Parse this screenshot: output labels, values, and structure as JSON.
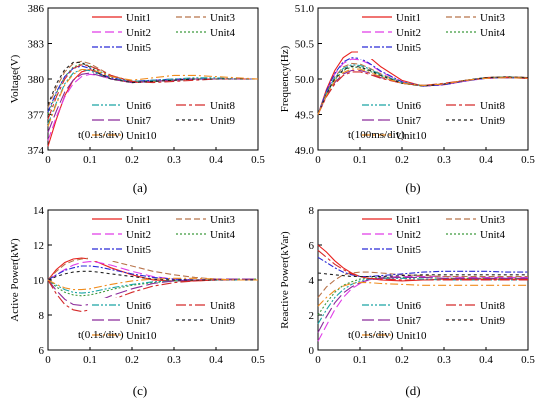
{
  "colors": {
    "Unit1": "#e8211e",
    "Unit2": "#e03ce8",
    "Unit3": "#b8734a",
    "Unit4": "#3e9a3e",
    "Unit5": "#2b2bd6",
    "Unit6": "#1aa3a3",
    "Unit7": "#8b2a9a",
    "Unit8": "#d42a2a",
    "Unit9": "#222222",
    "Unit10": "#f08c1e"
  },
  "dashes": {
    "Unit1": "",
    "Unit2": "9,4",
    "Unit3": "6,3",
    "Unit4": "2,2",
    "Unit5": "6,2,2,2",
    "Unit6": "7,2,2,2,2,2",
    "Unit7": "12,4",
    "Unit8": "10,3,3,3",
    "Unit9": "3,3",
    "Unit10": "8,3,2,3"
  },
  "chart_data": [
    {
      "type": "line",
      "panel_label": "(a)",
      "xlabel": "",
      "ylabel": "Voltage(V)",
      "annotation": "t(0.1s/div)",
      "xlim": [
        0,
        0.5
      ],
      "ylim": [
        374,
        386
      ],
      "xticks": [
        "0",
        "0.1",
        "0.2",
        "0.3",
        "0.4",
        "0.5"
      ],
      "yticks": [
        "374",
        "377",
        "380",
        "383",
        "386"
      ],
      "legend_top": [
        "Unit1",
        "Unit3",
        "Unit2",
        "Unit4",
        "Unit5"
      ],
      "legend_bottom": [
        "Unit6",
        "Unit8",
        "Unit7",
        "Unit9",
        "Unit10"
      ],
      "x": [
        0,
        0.02,
        0.04,
        0.06,
        0.08,
        0.1,
        0.12,
        0.15,
        0.2,
        0.25,
        0.3,
        0.35,
        0.4,
        0.45,
        0.5
      ],
      "series": [
        {
          "name": "Unit1",
          "values": [
            374.3,
            376.6,
            378.6,
            379.9,
            380.6,
            380.8,
            380.5,
            380.0,
            379.7,
            379.8,
            379.9,
            380.0,
            380.0,
            380.0,
            380.0
          ]
        },
        {
          "name": "Unit2",
          "values": [
            374.8,
            376.8,
            378.5,
            379.6,
            380.2,
            380.4,
            380.3,
            380.0,
            379.8,
            379.9,
            380.0,
            380.0,
            380.0,
            380.0,
            380.0
          ]
        },
        {
          "name": "Unit3",
          "values": [
            377.6,
            379.3,
            380.6,
            381.3,
            381.5,
            381.3,
            380.9,
            380.3,
            379.8,
            379.8,
            379.9,
            380.0,
            380.0,
            380.0,
            380.0
          ]
        },
        {
          "name": "Unit4",
          "values": [
            377.0,
            378.8,
            380.2,
            381.0,
            381.3,
            381.1,
            380.7,
            380.2,
            379.8,
            379.8,
            379.9,
            380.0,
            380.0,
            380.0,
            380.0
          ]
        },
        {
          "name": "Unit5",
          "values": [
            377.2,
            378.9,
            380.2,
            380.9,
            381.1,
            380.9,
            380.5,
            380.1,
            379.8,
            379.9,
            380.0,
            380.0,
            380.0,
            380.0,
            380.0
          ]
        },
        {
          "name": "Unit6",
          "values": [
            376.2,
            378.0,
            379.6,
            380.5,
            380.8,
            380.7,
            380.4,
            380.0,
            379.8,
            379.9,
            380.0,
            380.1,
            380.1,
            380.0,
            380.0
          ]
        },
        {
          "name": "Unit7",
          "values": [
            375.5,
            377.3,
            378.9,
            379.9,
            380.4,
            380.5,
            380.3,
            380.0,
            379.7,
            379.8,
            379.9,
            380.0,
            380.0,
            380.0,
            380.0
          ]
        },
        {
          "name": "Unit8",
          "values": [
            376.6,
            378.5,
            380.0,
            380.9,
            381.2,
            381.1,
            380.8,
            380.3,
            379.8,
            379.7,
            379.8,
            379.9,
            380.0,
            380.0,
            380.0
          ]
        },
        {
          "name": "Unit9",
          "values": [
            377.8,
            379.6,
            380.8,
            381.4,
            381.4,
            381.0,
            380.5,
            380.0,
            379.7,
            379.8,
            379.9,
            380.0,
            380.0,
            380.0,
            380.0
          ]
        },
        {
          "name": "Unit10",
          "values": [
            376.0,
            377.9,
            379.5,
            380.4,
            380.8,
            380.8,
            380.6,
            380.2,
            379.9,
            380.1,
            380.3,
            380.3,
            380.2,
            380.1,
            380.0
          ]
        }
      ]
    },
    {
      "type": "line",
      "panel_label": "(b)",
      "xlabel": "",
      "ylabel": "Frequency(Hz)",
      "annotation": "t(100ms/div)",
      "xlim": [
        0,
        0.5
      ],
      "ylim": [
        49,
        51
      ],
      "xticks": [
        "0",
        "0.1",
        "0.2",
        "0.3",
        "0.4",
        "0.5"
      ],
      "yticks": [
        "49.0",
        "49.5",
        "50.0",
        "50.5",
        "51.0"
      ],
      "legend_top": [
        "Unit1",
        "Unit3",
        "Unit2",
        "Unit4",
        "Unit5"
      ],
      "legend_bottom": [
        "Unit6",
        "Unit8",
        "Unit7",
        "Unit9",
        "Unit10"
      ],
      "x": [
        0,
        0.02,
        0.04,
        0.06,
        0.08,
        0.1,
        0.12,
        0.15,
        0.2,
        0.25,
        0.3,
        0.35,
        0.4,
        0.45,
        0.5
      ],
      "series": [
        {
          "name": "Unit1",
          "values": [
            49.5,
            49.85,
            50.12,
            50.3,
            50.38,
            50.38,
            50.32,
            50.17,
            49.98,
            49.9,
            49.92,
            49.97,
            50.02,
            50.03,
            50.02
          ]
        },
        {
          "name": "Unit2",
          "values": [
            49.5,
            49.82,
            50.07,
            50.22,
            50.28,
            50.27,
            50.22,
            50.1,
            49.96,
            49.9,
            49.92,
            49.97,
            50.01,
            50.02,
            50.01
          ]
        },
        {
          "name": "Unit3",
          "values": [
            49.5,
            49.8,
            50.03,
            50.17,
            50.22,
            50.21,
            50.16,
            50.07,
            49.95,
            49.9,
            49.93,
            49.98,
            50.02,
            50.03,
            50.02
          ]
        },
        {
          "name": "Unit4",
          "values": [
            49.5,
            49.78,
            49.99,
            50.12,
            50.17,
            50.16,
            50.12,
            50.04,
            49.94,
            49.9,
            49.93,
            49.98,
            50.02,
            50.03,
            50.02
          ]
        },
        {
          "name": "Unit5",
          "values": [
            49.5,
            49.83,
            50.08,
            50.24,
            50.3,
            50.29,
            50.23,
            50.11,
            49.96,
            49.9,
            49.92,
            49.97,
            50.01,
            50.02,
            50.01
          ]
        },
        {
          "name": "Unit6",
          "values": [
            49.5,
            49.8,
            50.02,
            50.15,
            50.2,
            50.19,
            50.15,
            50.06,
            49.95,
            49.91,
            49.93,
            49.98,
            50.02,
            50.02,
            50.01
          ]
        },
        {
          "name": "Unit7",
          "values": [
            49.5,
            49.76,
            49.95,
            50.07,
            50.12,
            50.12,
            50.09,
            50.02,
            49.94,
            49.91,
            49.93,
            49.98,
            50.01,
            50.02,
            50.01
          ]
        },
        {
          "name": "Unit8",
          "values": [
            49.5,
            49.75,
            49.93,
            50.05,
            50.1,
            50.1,
            50.07,
            50.01,
            49.94,
            49.91,
            49.94,
            49.98,
            50.02,
            50.02,
            50.01
          ]
        },
        {
          "name": "Unit9",
          "values": [
            49.5,
            49.79,
            50.0,
            50.13,
            50.18,
            50.17,
            50.13,
            50.05,
            49.94,
            49.9,
            49.93,
            49.98,
            50.02,
            50.03,
            50.02
          ]
        },
        {
          "name": "Unit10",
          "values": [
            49.5,
            49.77,
            49.97,
            50.09,
            50.14,
            50.14,
            50.1,
            50.03,
            49.94,
            49.91,
            49.93,
            49.98,
            50.01,
            50.02,
            50.01
          ]
        }
      ]
    },
    {
      "type": "line",
      "panel_label": "(c)",
      "xlabel": "",
      "ylabel": "Active Power(kW)",
      "annotation": "t(0.1s/div)",
      "xlim": [
        0,
        0.5
      ],
      "ylim": [
        6,
        14
      ],
      "xticks": [
        "0",
        "0.1",
        "0.2",
        "0.3",
        "0.4",
        "0.5"
      ],
      "yticks": [
        "6",
        "8",
        "10",
        "12",
        "14"
      ],
      "legend_top": [
        "Unit1",
        "Unit3",
        "Unit2",
        "Unit4",
        "Unit5"
      ],
      "legend_bottom": [
        "Unit6",
        "Unit8",
        "Unit7",
        "Unit9",
        "Unit10"
      ],
      "x": [
        0,
        0.02,
        0.04,
        0.06,
        0.08,
        0.1,
        0.12,
        0.15,
        0.2,
        0.25,
        0.3,
        0.35,
        0.4,
        0.45,
        0.5
      ],
      "series": [
        {
          "name": "Unit1",
          "values": [
            10.0,
            10.6,
            11.0,
            11.2,
            11.25,
            11.2,
            11.0,
            10.7,
            10.3,
            10.0,
            9.95,
            9.95,
            10.0,
            10.0,
            10.0
          ]
        },
        {
          "name": "Unit2",
          "values": [
            10.0,
            10.3,
            10.6,
            10.85,
            11.0,
            11.05,
            11.0,
            10.85,
            10.5,
            10.2,
            10.05,
            10.0,
            10.0,
            10.0,
            10.0
          ]
        },
        {
          "name": "Unit3",
          "values": [
            10.0,
            10.5,
            10.9,
            11.1,
            11.2,
            11.25,
            11.2,
            11.1,
            10.8,
            10.5,
            10.3,
            10.15,
            10.05,
            10.0,
            10.0
          ]
        },
        {
          "name": "Unit4",
          "values": [
            10.0,
            9.6,
            9.3,
            9.15,
            9.1,
            9.15,
            9.25,
            9.45,
            9.7,
            9.85,
            9.95,
            10.0,
            10.0,
            10.05,
            10.05
          ]
        },
        {
          "name": "Unit5",
          "values": [
            10.0,
            10.3,
            10.55,
            10.7,
            10.8,
            10.8,
            10.75,
            10.6,
            10.35,
            10.15,
            10.05,
            10.0,
            10.0,
            10.0,
            10.0
          ]
        },
        {
          "name": "Unit6",
          "values": [
            10.0,
            9.7,
            9.45,
            9.3,
            9.25,
            9.3,
            9.4,
            9.55,
            9.75,
            9.9,
            9.95,
            10.0,
            10.0,
            10.0,
            10.0
          ]
        },
        {
          "name": "Unit7",
          "values": [
            10.0,
            9.4,
            8.9,
            8.6,
            8.55,
            8.6,
            8.8,
            9.1,
            9.5,
            9.8,
            9.95,
            10.0,
            10.05,
            10.05,
            10.05
          ]
        },
        {
          "name": "Unit8",
          "values": [
            10.0,
            9.2,
            8.6,
            8.3,
            8.2,
            8.3,
            8.5,
            8.85,
            9.3,
            9.65,
            9.85,
            9.95,
            10.0,
            10.0,
            10.0
          ]
        },
        {
          "name": "Unit9",
          "values": [
            10.0,
            10.2,
            10.35,
            10.45,
            10.5,
            10.5,
            10.45,
            10.35,
            10.2,
            10.05,
            10.0,
            10.0,
            10.0,
            10.0,
            10.0
          ]
        },
        {
          "name": "Unit10",
          "values": [
            10.0,
            9.75,
            9.55,
            9.45,
            9.45,
            9.5,
            9.6,
            9.75,
            9.95,
            10.05,
            10.1,
            10.1,
            10.05,
            10.0,
            10.0
          ]
        }
      ]
    },
    {
      "type": "line",
      "panel_label": "(d)",
      "xlabel": "",
      "ylabel": "Reactive Power(kVar)",
      "annotation": "t(0.1s/div)",
      "xlim": [
        0,
        0.5
      ],
      "ylim": [
        0,
        8
      ],
      "xticks": [
        "0",
        "0.1",
        "0.2",
        "0.3",
        "0.4",
        "0.5"
      ],
      "yticks": [
        "0",
        "2",
        "4",
        "6",
        "8"
      ],
      "legend_top": [
        "Unit1",
        "Unit3",
        "Unit2",
        "Unit4",
        "Unit5"
      ],
      "legend_bottom": [
        "Unit6",
        "Unit8",
        "Unit7",
        "Unit9",
        "Unit10"
      ],
      "x": [
        0,
        0.02,
        0.04,
        0.06,
        0.08,
        0.1,
        0.12,
        0.15,
        0.2,
        0.25,
        0.3,
        0.35,
        0.4,
        0.45,
        0.5
      ],
      "series": [
        {
          "name": "Unit1",
          "values": [
            6.0,
            5.6,
            5.1,
            4.7,
            4.4,
            4.2,
            4.1,
            4.0,
            3.95,
            4.0,
            4.05,
            4.05,
            4.05,
            4.05,
            4.05
          ]
        },
        {
          "name": "Unit2",
          "values": [
            0.5,
            1.4,
            2.3,
            3.0,
            3.5,
            3.8,
            4.0,
            4.15,
            4.2,
            4.2,
            4.2,
            4.15,
            4.15,
            4.15,
            4.15
          ]
        },
        {
          "name": "Unit3",
          "values": [
            3.0,
            3.6,
            4.0,
            4.3,
            4.4,
            4.45,
            4.45,
            4.4,
            4.3,
            4.25,
            4.2,
            4.2,
            4.2,
            4.2,
            4.2
          ]
        },
        {
          "name": "Unit4",
          "values": [
            2.0,
            2.7,
            3.3,
            3.7,
            3.9,
            4.05,
            4.1,
            4.15,
            4.15,
            4.15,
            4.1,
            4.1,
            4.1,
            4.1,
            4.1
          ]
        },
        {
          "name": "Unit5",
          "values": [
            5.3,
            5.0,
            4.7,
            4.45,
            4.3,
            4.2,
            4.2,
            4.25,
            4.35,
            4.45,
            4.5,
            4.5,
            4.5,
            4.45,
            4.45
          ]
        },
        {
          "name": "Unit6",
          "values": [
            1.5,
            2.3,
            3.0,
            3.45,
            3.75,
            3.95,
            4.05,
            4.1,
            4.1,
            4.05,
            4.0,
            4.0,
            4.0,
            4.0,
            4.0
          ]
        },
        {
          "name": "Unit7",
          "values": [
            1.0,
            1.9,
            2.7,
            3.25,
            3.6,
            3.85,
            4.0,
            4.1,
            4.15,
            4.15,
            4.1,
            4.1,
            4.1,
            4.1,
            4.1
          ]
        },
        {
          "name": "Unit8",
          "values": [
            5.7,
            5.3,
            4.9,
            4.6,
            4.35,
            4.2,
            4.1,
            4.05,
            4.0,
            4.0,
            4.0,
            4.0,
            4.0,
            4.0,
            4.0
          ]
        },
        {
          "name": "Unit9",
          "values": [
            4.4,
            4.35,
            4.3,
            4.25,
            4.2,
            4.2,
            4.2,
            4.2,
            4.25,
            4.3,
            4.3,
            4.3,
            4.3,
            4.3,
            4.3
          ]
        },
        {
          "name": "Unit10",
          "values": [
            2.5,
            3.0,
            3.4,
            3.65,
            3.8,
            3.85,
            3.85,
            3.8,
            3.75,
            3.7,
            3.7,
            3.7,
            3.7,
            3.7,
            3.7
          ]
        }
      ]
    }
  ]
}
